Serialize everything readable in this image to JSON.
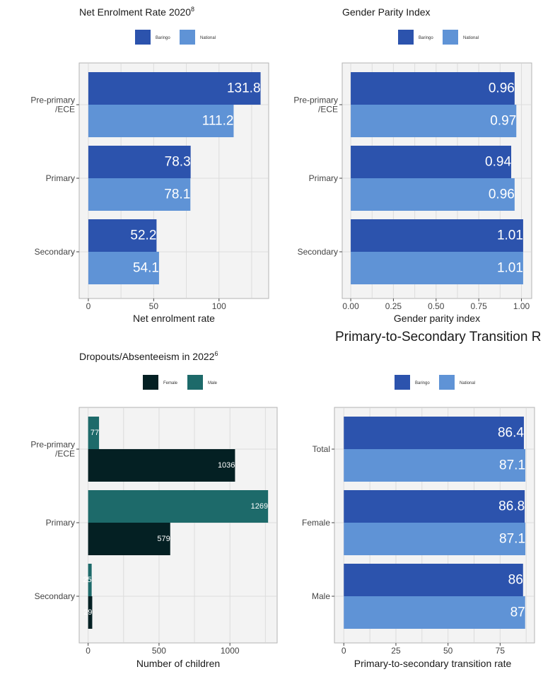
{
  "colors": {
    "baringo": "#2C53AD",
    "national": "#5F93D6",
    "female": "#042023",
    "male": "#1D6A6A"
  },
  "chart_data": [
    {
      "id": "ner",
      "type": "bar",
      "orientation": "horizontal",
      "title": "Net Enrolment Rate 2020",
      "title_superscript": "8",
      "xlabel": "Net enrolment rate",
      "categories": [
        "Pre-primary\n/ECE",
        "Primary",
        "Secondary"
      ],
      "series": [
        {
          "name": "Baringo",
          "color_key": "baringo",
          "values": [
            131.8,
            78.3,
            52.2
          ],
          "labels": [
            "131.8",
            "78.3",
            "52.2"
          ]
        },
        {
          "name": "National",
          "color_key": "national",
          "values": [
            111.2,
            78.1,
            54.1
          ],
          "labels": [
            "111.2",
            "78.1",
            "54.1"
          ]
        }
      ],
      "xlim": [
        -7,
        138
      ],
      "xticks": [
        0,
        50,
        100
      ],
      "xtick_labels": [
        "0",
        "50",
        "100"
      ],
      "grid": true,
      "legend": "top"
    },
    {
      "id": "gpi",
      "type": "bar",
      "orientation": "horizontal",
      "title": "Gender Parity Index",
      "xlabel": "Gender parity index",
      "categories": [
        "Pre-primary\n/ECE",
        "Primary",
        "Secondary"
      ],
      "series": [
        {
          "name": "Baringo",
          "color_key": "baringo",
          "values": [
            0.96,
            0.94,
            1.01
          ],
          "labels": [
            "0.96",
            "0.94",
            "1.01"
          ]
        },
        {
          "name": "National",
          "color_key": "national",
          "values": [
            0.97,
            0.96,
            1.01
          ],
          "labels": [
            "0.97",
            "0.96",
            "1.01"
          ]
        }
      ],
      "xlim": [
        -0.05,
        1.06
      ],
      "xticks": [
        0,
        0.25,
        0.5,
        0.75,
        1.0
      ],
      "xtick_labels": [
        "0.00",
        "0.25",
        "0.50",
        "0.75",
        "1.00"
      ],
      "grid": true,
      "legend": "top"
    },
    {
      "id": "dropouts",
      "type": "bar",
      "orientation": "horizontal",
      "title": "Dropouts/Absenteeism in 2022",
      "title_superscript": "6",
      "xlabel": "Number of children",
      "categories": [
        "Pre-primary\n/ECE",
        "Primary",
        "Secondary"
      ],
      "series": [
        {
          "name": "Female",
          "color_key": "female",
          "values": [
            1036,
            579,
            29
          ],
          "labels": [
            "1036",
            "579",
            "29"
          ]
        },
        {
          "name": "Male",
          "color_key": "male",
          "values": [
            77,
            1269,
            25
          ],
          "labels": [
            "77",
            "1269",
            "25"
          ]
        }
      ],
      "xlim": [
        -63,
        1333
      ],
      "xticks": [
        0,
        500,
        1000
      ],
      "xtick_labels": [
        "0",
        "500",
        "1000"
      ],
      "grid": true,
      "legend": "top"
    },
    {
      "id": "transition",
      "type": "bar",
      "orientation": "horizontal",
      "title": "Primary-to-Secondary Transition R",
      "xlabel": "Primary-to-secondary transition rate",
      "categories": [
        "Total",
        "Female",
        "Male"
      ],
      "series": [
        {
          "name": "Baringo",
          "color_key": "baringo",
          "values": [
            86.4,
            86.8,
            86
          ],
          "labels": [
            "86.4",
            "86.8",
            "86"
          ]
        },
        {
          "name": "National",
          "color_key": "national",
          "values": [
            87.1,
            87.1,
            87
          ],
          "labels": [
            "87.1",
            "87.1",
            "87"
          ]
        }
      ],
      "xlim": [
        -4.5,
        91.5
      ],
      "xticks": [
        0,
        25,
        50,
        75
      ],
      "xtick_labels": [
        "0",
        "25",
        "50",
        "75"
      ],
      "grid": true,
      "legend": "top"
    }
  ]
}
